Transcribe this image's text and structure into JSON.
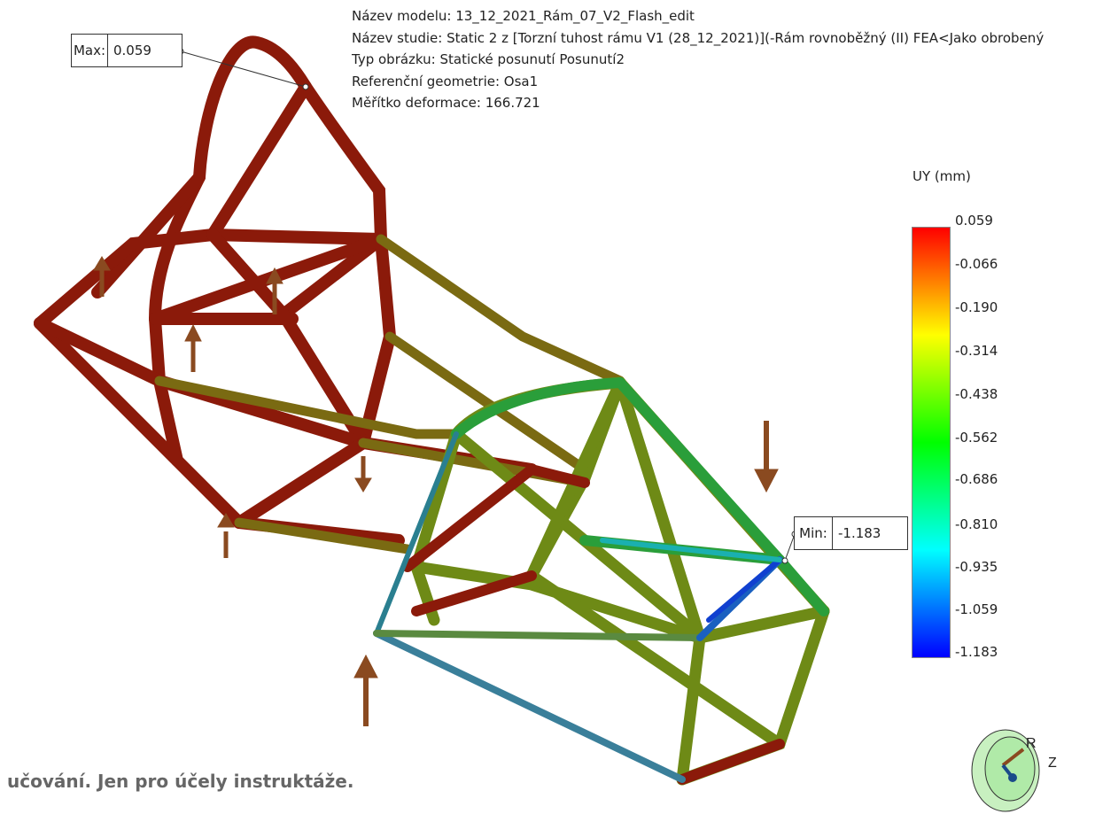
{
  "info": {
    "model": "Název modelu: 13_12_2021_Rám_07_V2_Flash_edit",
    "study": "Název studie: Static 2 z [Torzní tuhost rámu V1 (28_12_2021)](-Rám rovnoběžný (II) FEA<Jako obrobený",
    "plot_type": "Typ obrázku: Statické posunutí Posunutí2",
    "reference": "Referenční geometrie: Osa1",
    "scale": "Měřítko deformace: 166.721"
  },
  "callouts": {
    "max_label": "Max:",
    "max_value": "0.059",
    "min_label": "Min:",
    "min_value": "-1.183"
  },
  "legend": {
    "title": "UY (mm)",
    "ticks": [
      "0.059",
      "-0.066",
      "-0.190",
      "-0.314",
      "-0.438",
      "-0.562",
      "-0.686",
      "-0.810",
      "-0.935",
      "-1.059",
      "-1.183"
    ],
    "colors": [
      "#ff0000",
      "#ff7f00",
      "#ffff00",
      "#00ff00",
      "#00ffff",
      "#0000ff"
    ]
  },
  "watermark": "učování. Jen pro účely instruktáže.",
  "triad": {
    "r_label": "R",
    "z_label": "Z"
  }
}
